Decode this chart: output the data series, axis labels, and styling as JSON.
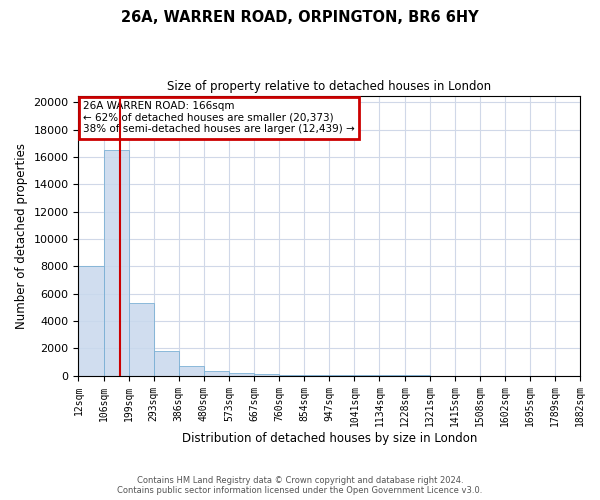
{
  "title_line1": "26A, WARREN ROAD, ORPINGTON, BR6 6HY",
  "title_line2": "Size of property relative to detached houses in London",
  "xlabel": "Distribution of detached houses by size in London",
  "ylabel": "Number of detached properties",
  "bar_left_edges": [
    12,
    106,
    199,
    293,
    386,
    480,
    573,
    667,
    760,
    854,
    947,
    1041,
    1134,
    1228,
    1321,
    1415,
    1508,
    1602,
    1695,
    1789
  ],
  "bar_widths": [
    94,
    93,
    94,
    93,
    94,
    93,
    94,
    93,
    94,
    93,
    94,
    93,
    94,
    93,
    94,
    93,
    94,
    93,
    94,
    93
  ],
  "bar_heights": [
    8050,
    16500,
    5300,
    1800,
    700,
    370,
    200,
    110,
    65,
    40,
    28,
    20,
    14,
    10,
    7,
    5,
    4,
    3,
    2,
    2
  ],
  "bar_color": "#c8d8ed",
  "bar_edge_color": "#7aafd4",
  "bar_alpha": 0.85,
  "x_tick_labels": [
    "12sqm",
    "106sqm",
    "199sqm",
    "293sqm",
    "386sqm",
    "480sqm",
    "573sqm",
    "667sqm",
    "760sqm",
    "854sqm",
    "947sqm",
    "1041sqm",
    "1134sqm",
    "1228sqm",
    "1321sqm",
    "1415sqm",
    "1508sqm",
    "1602sqm",
    "1695sqm",
    "1789sqm",
    "1882sqm"
  ],
  "x_tick_positions": [
    12,
    106,
    199,
    293,
    386,
    480,
    573,
    667,
    760,
    854,
    947,
    1041,
    1134,
    1228,
    1321,
    1415,
    1508,
    1602,
    1695,
    1789,
    1882
  ],
  "y_tick_values": [
    0,
    2000,
    4000,
    6000,
    8000,
    10000,
    12000,
    14000,
    16000,
    18000,
    20000
  ],
  "ylim": [
    0,
    20500
  ],
  "xlim": [
    12,
    1882
  ],
  "red_line_x": 166,
  "annotation_title": "26A WARREN ROAD: 166sqm",
  "annotation_line1": "← 62% of detached houses are smaller (20,373)",
  "annotation_line2": "38% of semi-detached houses are larger (12,439) →",
  "annotation_box_color": "#cc0000",
  "footer_line1": "Contains HM Land Registry data © Crown copyright and database right 2024.",
  "footer_line2": "Contains public sector information licensed under the Open Government Licence v3.0.",
  "background_color": "#ffffff",
  "grid_color": "#d0d8e8"
}
